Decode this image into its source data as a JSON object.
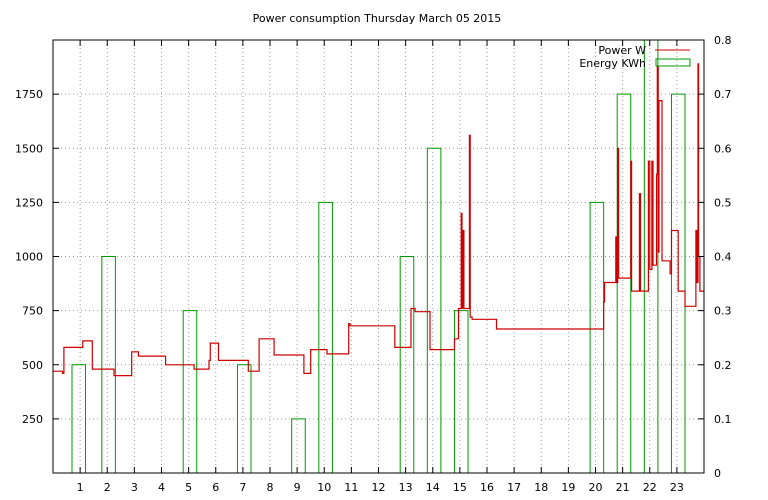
{
  "chart_data": {
    "type": "line",
    "title": "Power consumption Thursday March 05 2015",
    "xlabel": "",
    "ylabel": "",
    "xlim": [
      0,
      24
    ],
    "ylim": [
      0,
      2000
    ],
    "y2lim": [
      0,
      0.8
    ],
    "x_ticks": [
      "1",
      "2",
      "3",
      "4",
      "5",
      "6",
      "7",
      "8",
      "9",
      "10",
      "11",
      "12",
      "13",
      "14",
      "15",
      "16",
      "17",
      "18",
      "19",
      "20",
      "21",
      "22",
      "23"
    ],
    "y_ticks": [
      "250",
      "500",
      "750",
      "1000",
      "1250",
      "1500",
      "1750"
    ],
    "y2_ticks": [
      "0",
      "0.1",
      "0.2",
      "0.3",
      "0.4",
      "0.5",
      "0.6",
      "0.7",
      "0.8"
    ],
    "grid": true,
    "legend_position": "top-right",
    "series": [
      {
        "name": "Power W",
        "axis": "left",
        "color": "#cc0000",
        "points": [
          [
            0.0,
            470
          ],
          [
            0.35,
            470
          ],
          [
            0.35,
            460
          ],
          [
            0.4,
            460
          ],
          [
            0.4,
            580
          ],
          [
            1.1,
            580
          ],
          [
            1.1,
            610
          ],
          [
            1.45,
            610
          ],
          [
            1.45,
            480
          ],
          [
            2.25,
            480
          ],
          [
            2.25,
            450
          ],
          [
            2.9,
            450
          ],
          [
            2.9,
            560
          ],
          [
            3.15,
            560
          ],
          [
            3.15,
            540
          ],
          [
            4.15,
            540
          ],
          [
            4.15,
            500
          ],
          [
            5.2,
            500
          ],
          [
            5.2,
            480
          ],
          [
            5.75,
            480
          ],
          [
            5.75,
            520
          ],
          [
            5.8,
            520
          ],
          [
            5.8,
            600
          ],
          [
            6.1,
            600
          ],
          [
            6.1,
            520
          ],
          [
            7.2,
            520
          ],
          [
            7.2,
            470
          ],
          [
            7.6,
            470
          ],
          [
            7.6,
            620
          ],
          [
            8.15,
            620
          ],
          [
            8.15,
            545
          ],
          [
            9.25,
            545
          ],
          [
            9.25,
            460
          ],
          [
            9.5,
            460
          ],
          [
            9.5,
            570
          ],
          [
            10.1,
            570
          ],
          [
            10.1,
            550
          ],
          [
            10.9,
            550
          ],
          [
            10.9,
            690
          ],
          [
            10.95,
            690
          ],
          [
            10.95,
            680
          ],
          [
            12.6,
            680
          ],
          [
            12.6,
            580
          ],
          [
            13.2,
            580
          ],
          [
            13.2,
            760
          ],
          [
            13.35,
            760
          ],
          [
            13.35,
            745
          ],
          [
            13.9,
            745
          ],
          [
            13.9,
            570
          ],
          [
            14.8,
            570
          ],
          [
            14.8,
            620
          ],
          [
            14.95,
            620
          ],
          [
            14.95,
            760
          ],
          [
            15.05,
            760
          ],
          [
            15.05,
            1200
          ],
          [
            15.08,
            1200
          ],
          [
            15.08,
            760
          ],
          [
            15.12,
            760
          ],
          [
            15.12,
            1120
          ],
          [
            15.15,
            1120
          ],
          [
            15.15,
            760
          ],
          [
            15.35,
            760
          ],
          [
            15.35,
            1560
          ],
          [
            15.38,
            1560
          ],
          [
            15.38,
            720
          ],
          [
            15.45,
            720
          ],
          [
            15.45,
            710
          ],
          [
            16.35,
            710
          ],
          [
            16.35,
            665
          ],
          [
            20.3,
            665
          ],
          [
            20.3,
            790
          ],
          [
            20.33,
            790
          ],
          [
            20.33,
            880
          ],
          [
            20.75,
            880
          ],
          [
            20.75,
            1090
          ],
          [
            20.78,
            1090
          ],
          [
            20.78,
            880
          ],
          [
            20.82,
            880
          ],
          [
            20.82,
            1500
          ],
          [
            20.85,
            1500
          ],
          [
            20.85,
            900
          ],
          [
            21.3,
            900
          ],
          [
            21.3,
            1440
          ],
          [
            21.33,
            1440
          ],
          [
            21.33,
            840
          ],
          [
            21.62,
            840
          ],
          [
            21.62,
            1290
          ],
          [
            21.66,
            1290
          ],
          [
            21.66,
            840
          ],
          [
            21.95,
            840
          ],
          [
            21.95,
            1440
          ],
          [
            22.0,
            1440
          ],
          [
            22.0,
            940
          ],
          [
            22.08,
            940
          ],
          [
            22.08,
            1440
          ],
          [
            22.12,
            1440
          ],
          [
            22.12,
            960
          ],
          [
            22.25,
            960
          ],
          [
            22.25,
            1380
          ],
          [
            22.28,
            1380
          ],
          [
            22.28,
            1880
          ],
          [
            22.31,
            1880
          ],
          [
            22.31,
            1020
          ],
          [
            22.34,
            1020
          ],
          [
            22.34,
            1720
          ],
          [
            22.45,
            1720
          ],
          [
            22.45,
            980
          ],
          [
            22.75,
            980
          ],
          [
            22.75,
            920
          ],
          [
            22.8,
            920
          ],
          [
            22.8,
            1120
          ],
          [
            23.05,
            1120
          ],
          [
            23.05,
            840
          ],
          [
            23.3,
            840
          ],
          [
            23.3,
            770
          ],
          [
            23.7,
            770
          ],
          [
            23.7,
            1120
          ],
          [
            23.74,
            1120
          ],
          [
            23.74,
            880
          ],
          [
            23.78,
            880
          ],
          [
            23.78,
            1890
          ],
          [
            23.8,
            1890
          ],
          [
            23.8,
            1000
          ],
          [
            23.85,
            1000
          ],
          [
            23.85,
            840
          ],
          [
            24.0,
            840
          ]
        ]
      },
      {
        "name": "Energy KWh",
        "axis": "right",
        "color": "#009900",
        "bars": [
          [
            0.7,
            1.2,
            0.2
          ],
          [
            1.8,
            2.3,
            0.4
          ],
          [
            4.8,
            5.3,
            0.3
          ],
          [
            6.8,
            7.3,
            0.2
          ],
          [
            8.8,
            9.3,
            0.1
          ],
          [
            9.8,
            10.3,
            0.5
          ],
          [
            12.8,
            13.3,
            0.4
          ],
          [
            13.8,
            14.3,
            0.6
          ],
          [
            14.8,
            15.3,
            0.3
          ],
          [
            19.8,
            20.3,
            0.5
          ],
          [
            20.8,
            21.3,
            0.7
          ],
          [
            21.8,
            22.3,
            0.8
          ],
          [
            22.8,
            23.3,
            0.7
          ]
        ]
      }
    ]
  }
}
